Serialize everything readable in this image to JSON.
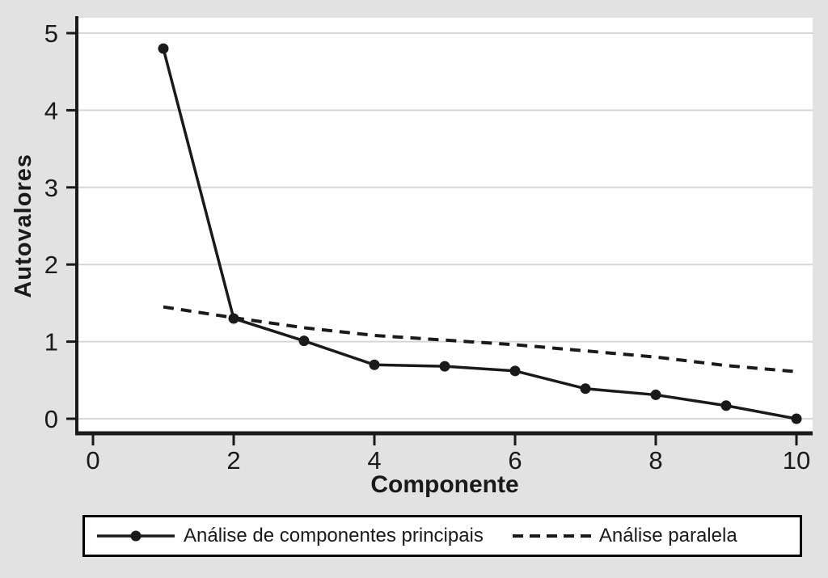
{
  "chart_data": {
    "type": "line",
    "title": "",
    "xlabel": "Componente",
    "ylabel": "Autovalores",
    "x": [
      1,
      2,
      3,
      4,
      5,
      6,
      7,
      8,
      9,
      10
    ],
    "x_ticks": [
      0,
      2,
      4,
      6,
      8,
      10
    ],
    "y_ticks": [
      0,
      1,
      2,
      3,
      4,
      5
    ],
    "xlim": [
      -0.25,
      10.25
    ],
    "ylim": [
      -0.2,
      5.2
    ],
    "grid": "horizontal-only",
    "legend_position": "bottom",
    "series": [
      {
        "name": "Análise de componentes principais",
        "line_style": "solid",
        "marker": "filled-circle",
        "color": "#1a1a1a",
        "values": [
          4.8,
          1.3,
          1.01,
          0.7,
          0.68,
          0.62,
          0.39,
          0.31,
          0.17,
          0.0
        ]
      },
      {
        "name": "Análise paralela",
        "line_style": "dashed",
        "marker": "none",
        "color": "#1a1a1a",
        "values": [
          1.45,
          1.31,
          1.18,
          1.08,
          1.02,
          0.96,
          0.88,
          0.8,
          0.69,
          0.61
        ]
      }
    ],
    "colors": {
      "background": "#e2e2e2",
      "plot_background": "#ffffff",
      "gridline": "#d6d6d6",
      "axis": "#1a1a1a",
      "text": "#1a1a1a",
      "legend_background": "#ffffff",
      "legend_border": "#000000"
    }
  }
}
